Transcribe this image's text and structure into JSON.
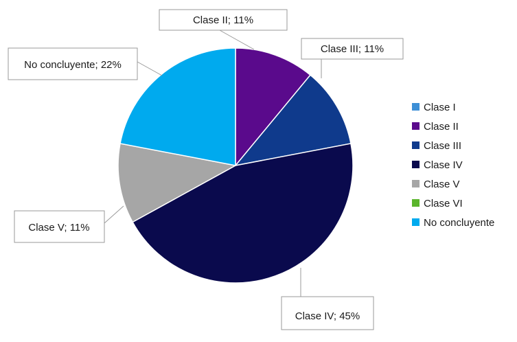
{
  "chart_data": {
    "type": "pie",
    "categories": [
      "Clase I",
      "Clase II",
      "Clase III",
      "Clase IV",
      "Clase V",
      "Clase VI",
      "No concluyente"
    ],
    "values": [
      0,
      11,
      11,
      45,
      11,
      0,
      22
    ],
    "unit": "%",
    "colors": [
      "#3d8fd6",
      "#5a0a8c",
      "#0f3a8c",
      "#0a0a4d",
      "#a6a6a6",
      "#5ab52b",
      "#00aaee"
    ],
    "data_labels": [
      {
        "category": "Clase II",
        "text": "Clase II; 11%"
      },
      {
        "category": "Clase III",
        "text": "Clase III; 11%"
      },
      {
        "category": "Clase IV",
        "text": "Clase IV; 45%"
      },
      {
        "category": "Clase V",
        "text": "Clase V; 11%"
      },
      {
        "category": "No concluyente",
        "text": "No concluyente; 22%"
      }
    ],
    "legend": {
      "position": "right",
      "entries": [
        "Clase I",
        "Clase II",
        "Clase III",
        "Clase IV",
        "Clase V",
        "Clase VI",
        "No concluyente"
      ]
    }
  }
}
